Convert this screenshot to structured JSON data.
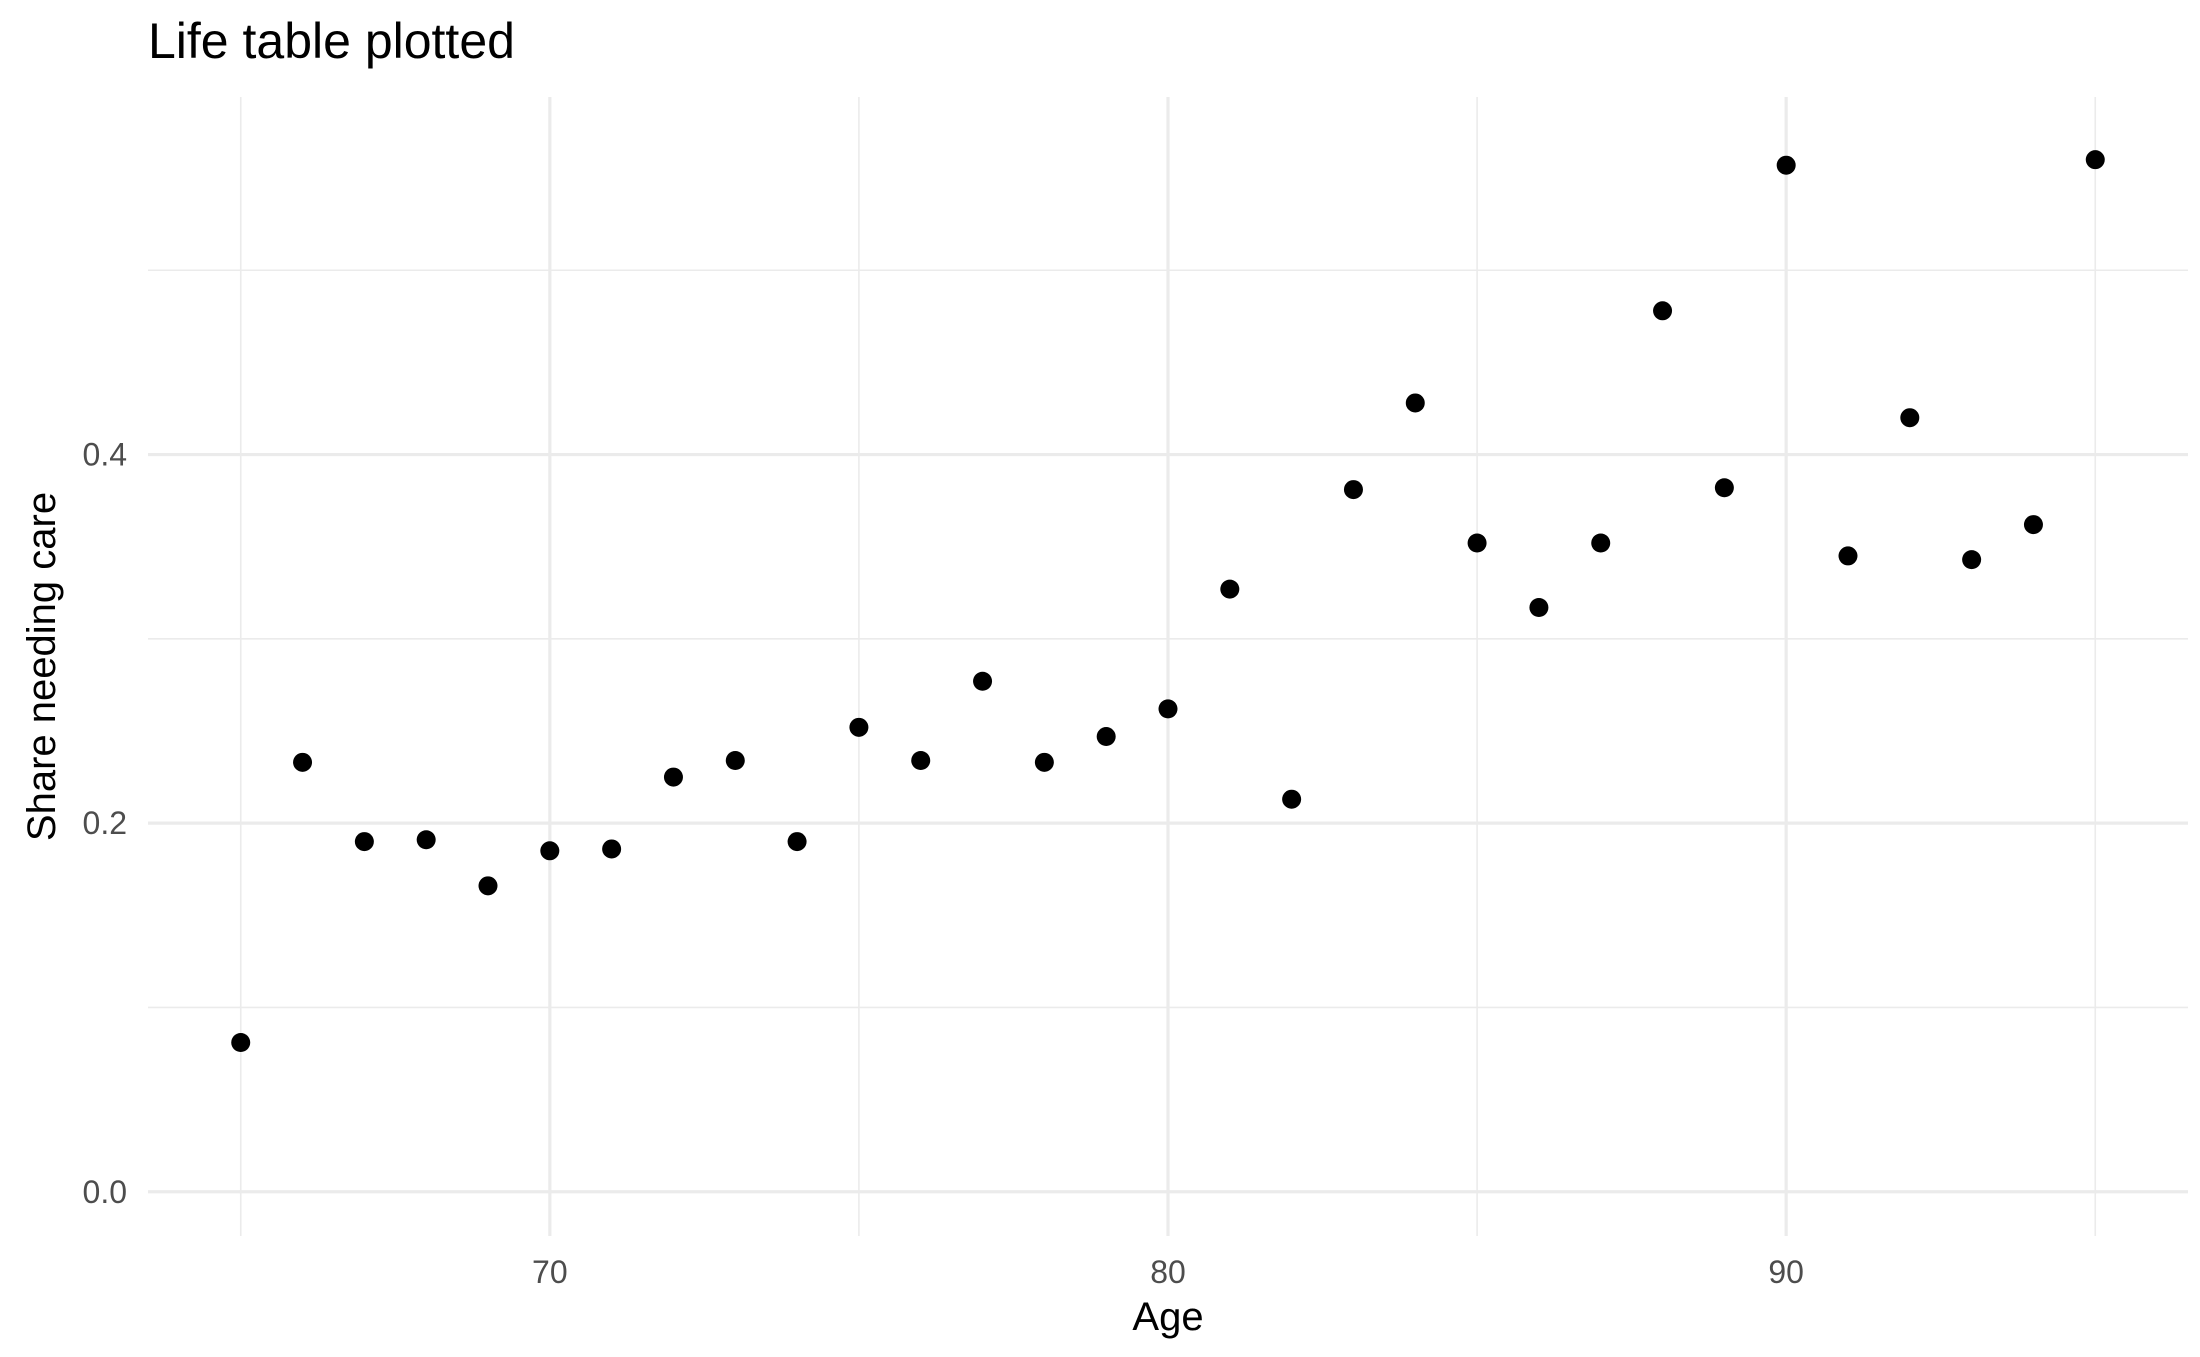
{
  "chart_data": {
    "type": "scatter",
    "title": "Life table plotted",
    "xlabel": "Age",
    "ylabel": "Share needing care",
    "xlim": [
      63.5,
      96.5
    ],
    "ylim": [
      -0.024,
      0.594
    ],
    "x_ticks": [
      70,
      80,
      90
    ],
    "x_tick_labels": [
      "70",
      "80",
      "90"
    ],
    "y_ticks": [
      0.0,
      0.2,
      0.4
    ],
    "y_tick_labels": [
      "0.0",
      "0.2",
      "0.4"
    ],
    "grid": true,
    "legend": "none",
    "point_color": "#000000",
    "points": [
      {
        "x": 65,
        "y": 0.081
      },
      {
        "x": 66,
        "y": 0.233
      },
      {
        "x": 67,
        "y": 0.19
      },
      {
        "x": 68,
        "y": 0.191
      },
      {
        "x": 69,
        "y": 0.166
      },
      {
        "x": 70,
        "y": 0.185
      },
      {
        "x": 71,
        "y": 0.186
      },
      {
        "x": 72,
        "y": 0.225
      },
      {
        "x": 73,
        "y": 0.234
      },
      {
        "x": 74,
        "y": 0.19
      },
      {
        "x": 75,
        "y": 0.252
      },
      {
        "x": 76,
        "y": 0.234
      },
      {
        "x": 77,
        "y": 0.277
      },
      {
        "x": 78,
        "y": 0.233
      },
      {
        "x": 79,
        "y": 0.247
      },
      {
        "x": 80,
        "y": 0.262
      },
      {
        "x": 81,
        "y": 0.327
      },
      {
        "x": 82,
        "y": 0.213
      },
      {
        "x": 83,
        "y": 0.381
      },
      {
        "x": 84,
        "y": 0.428
      },
      {
        "x": 85,
        "y": 0.352
      },
      {
        "x": 86,
        "y": 0.317
      },
      {
        "x": 87,
        "y": 0.352
      },
      {
        "x": 88,
        "y": 0.478
      },
      {
        "x": 89,
        "y": 0.382
      },
      {
        "x": 90,
        "y": 0.557
      },
      {
        "x": 91,
        "y": 0.345
      },
      {
        "x": 92,
        "y": 0.42
      },
      {
        "x": 93,
        "y": 0.343
      },
      {
        "x": 94,
        "y": 0.362
      },
      {
        "x": 95,
        "y": 0.56
      }
    ]
  }
}
